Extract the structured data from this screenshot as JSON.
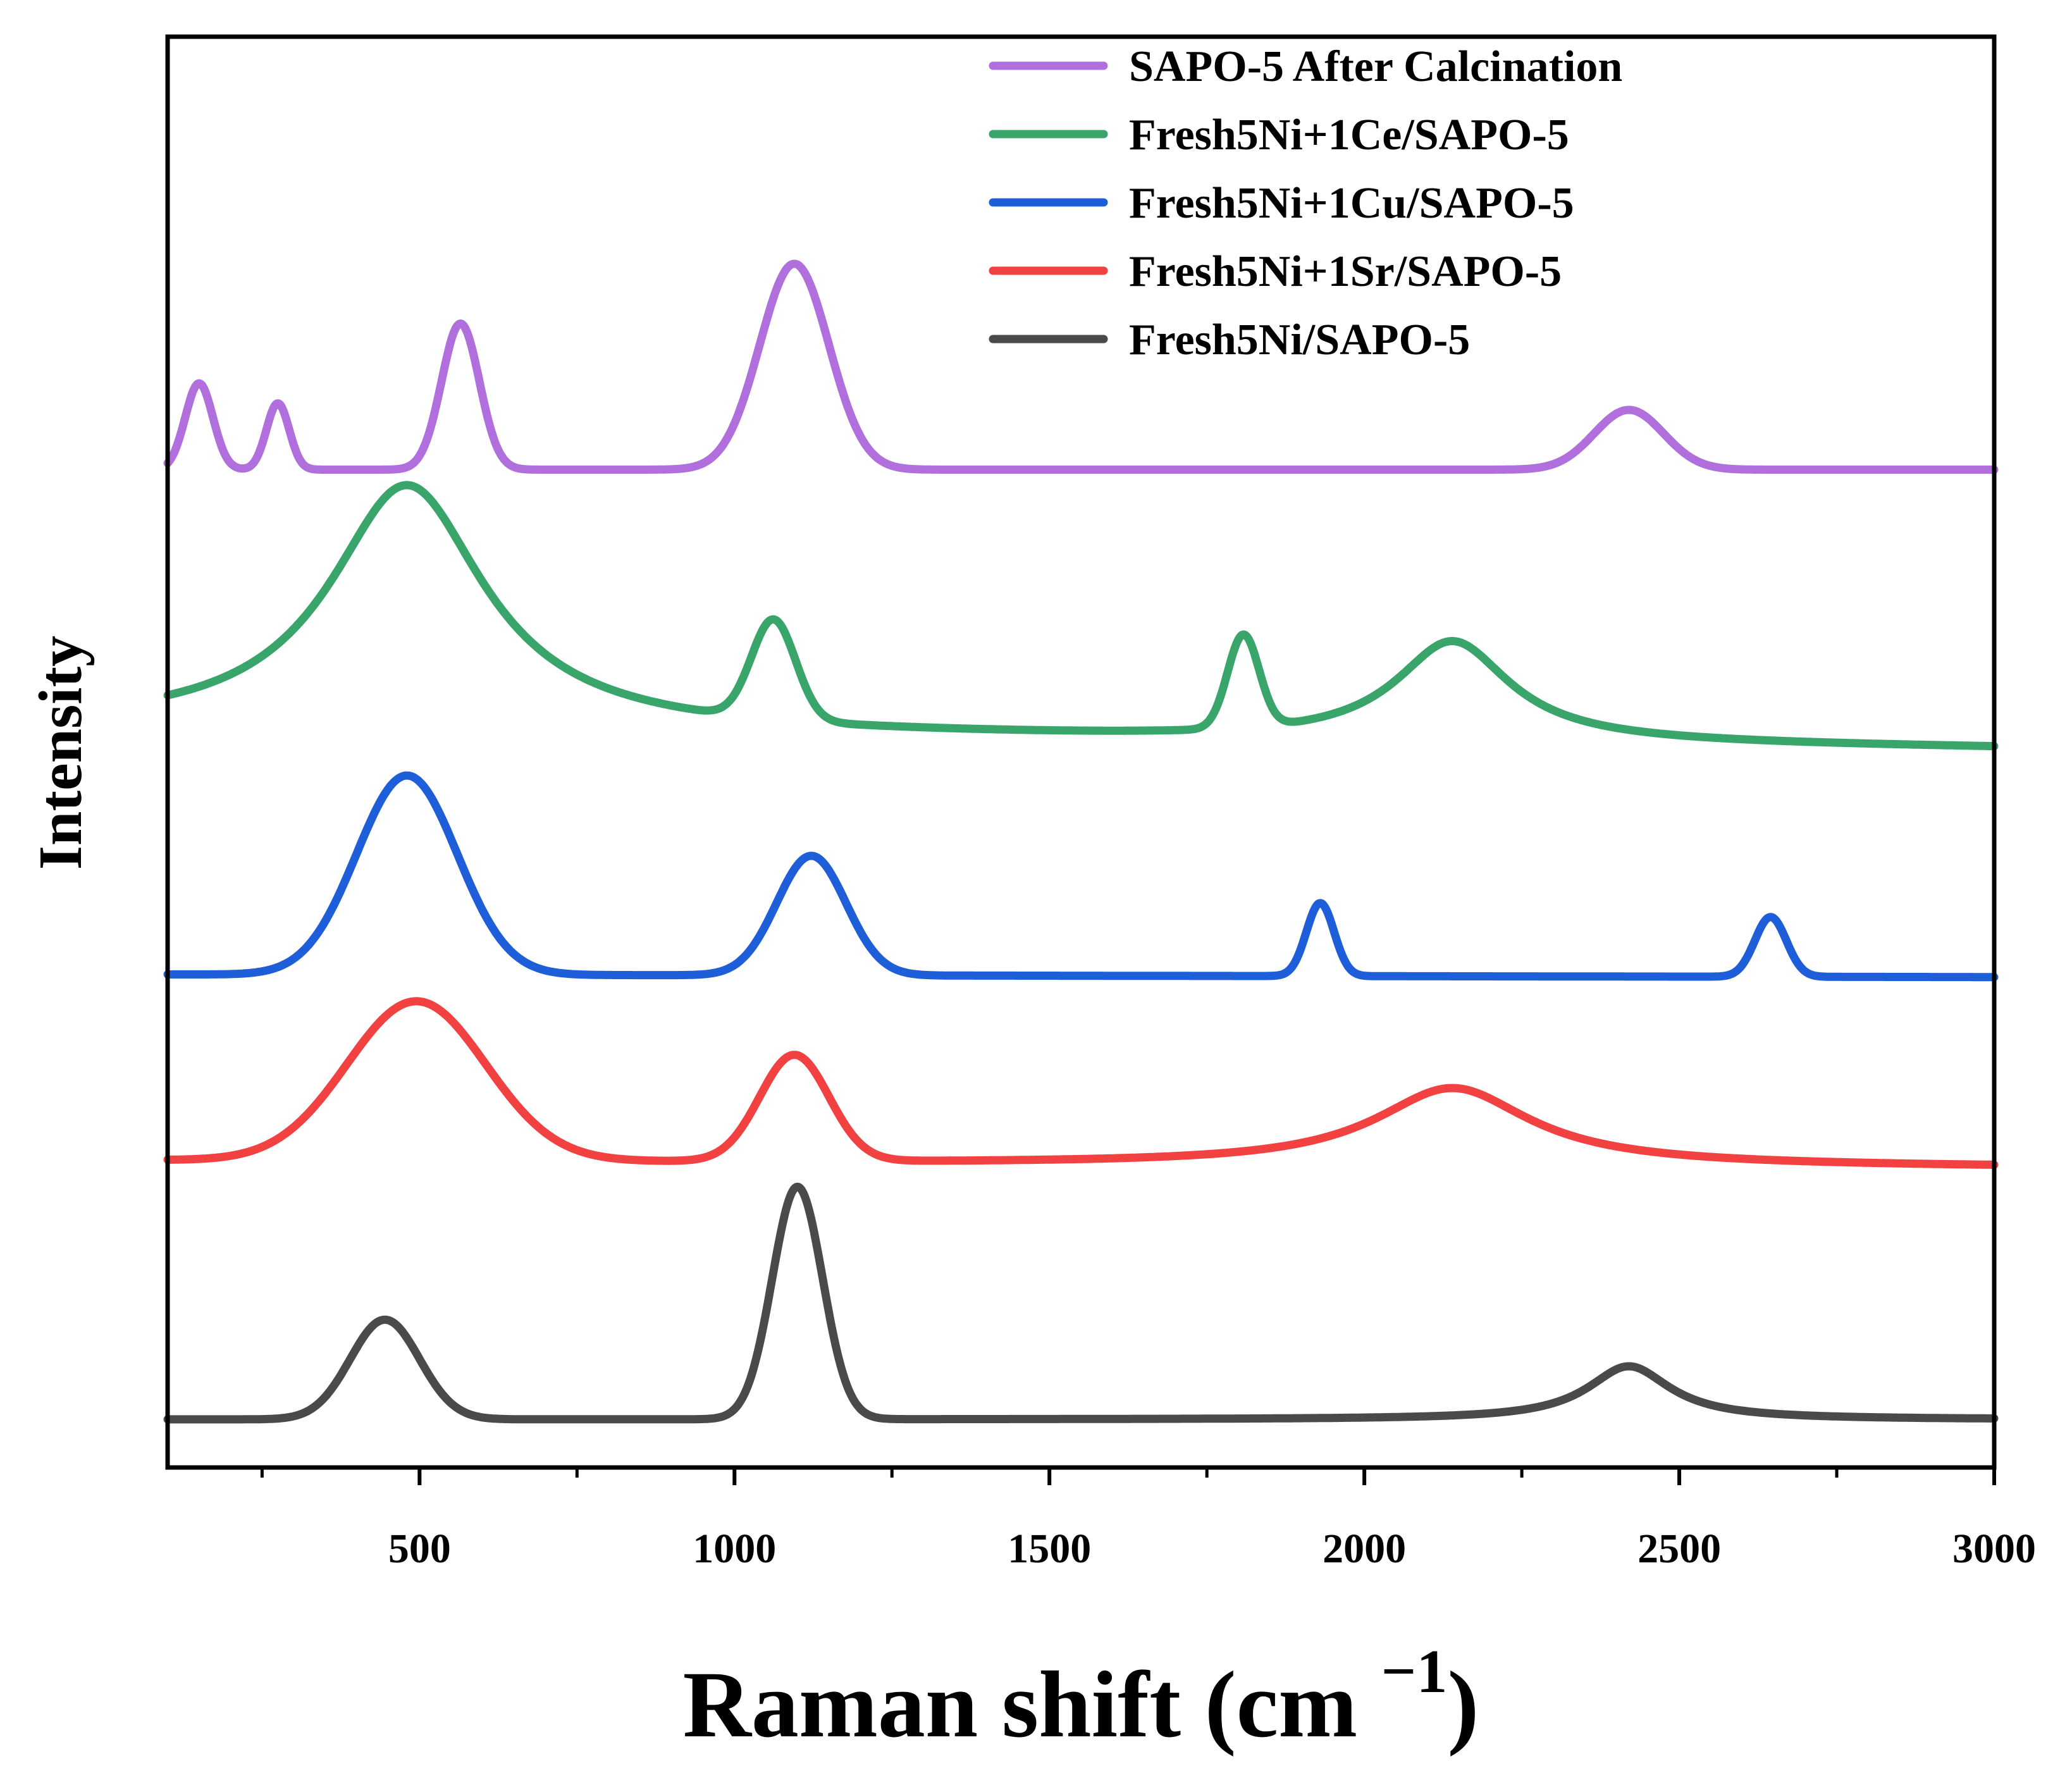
{
  "chart_data": {
    "type": "line",
    "title": "",
    "xlabel": "Raman shift (cm",
    "xlabel_superscript": "−1",
    "xlabel_close": ")",
    "ylabel": "Intensity",
    "xlim": [
      100,
      3000
    ],
    "ylim": [
      0,
      100
    ],
    "grid": false,
    "legend_position": "top-right",
    "x_ticks": [
      500,
      1000,
      1500,
      2000,
      2500,
      3000
    ],
    "x_tick_labels": [
      "500",
      "1000",
      "1500",
      "2000",
      "2500",
      "3000"
    ],
    "x_minor_ticks": [
      250,
      750,
      1250,
      1750,
      2250,
      2750
    ],
    "series": [
      {
        "name": "SAPO-5 After Calcination",
        "color": "#b06fdc",
        "baseline": 72.5,
        "baseline_end": 72.5,
        "peaks": [
          {
            "x": 150,
            "height": 6.5,
            "width": 22,
            "shape": "gauss"
          },
          {
            "x": 275,
            "height": 5.0,
            "width": 18,
            "shape": "gauss"
          },
          {
            "x": 565,
            "height": 11.0,
            "width": 30,
            "shape": "gauss"
          },
          {
            "x": 1095,
            "height": 15.5,
            "width": 55,
            "shape": "gauss"
          },
          {
            "x": 2420,
            "height": 4.5,
            "width": 55,
            "shape": "gauss"
          }
        ]
      },
      {
        "name": "Fresh5Ni+1Ce/SAPO-5",
        "color": "#3aa56b",
        "baseline": 53.0,
        "baseline_end": 51.5,
        "peaks": [
          {
            "x": 480,
            "height": 18.5,
            "width": 150,
            "shape": "lorentz"
          },
          {
            "x": 1062,
            "height": 7.5,
            "width": 35,
            "shape": "gauss"
          },
          {
            "x": 1808,
            "height": 7.0,
            "width": 25,
            "shape": "gauss"
          },
          {
            "x": 2140,
            "height": 7.5,
            "width": 110,
            "shape": "lorentz"
          }
        ]
      },
      {
        "name": "Fresh5Ni+1Cu/SAPO-5",
        "color": "#1e5ed8",
        "baseline": 34.5,
        "baseline_end": 34.3,
        "peaks": [
          {
            "x": 480,
            "height": 15.0,
            "width": 80,
            "shape": "gauss"
          },
          {
            "x": 1122,
            "height": 9.0,
            "width": 55,
            "shape": "gauss"
          },
          {
            "x": 1930,
            "height": 5.5,
            "width": 22,
            "shape": "gauss"
          },
          {
            "x": 2645,
            "height": 4.5,
            "width": 25,
            "shape": "gauss"
          }
        ]
      },
      {
        "name": "Fresh5Ni+1Sr/SAPO-5",
        "color": "#f14141",
        "baseline": 20.5,
        "baseline_end": 20.0,
        "peaks": [
          {
            "x": 495,
            "height": 12.0,
            "width": 110,
            "shape": "gauss"
          },
          {
            "x": 1095,
            "height": 8.0,
            "width": 55,
            "shape": "gauss"
          },
          {
            "x": 2140,
            "height": 5.8,
            "width": 150,
            "shape": "lorentz"
          }
        ]
      },
      {
        "name": "Fresh5Ni/SAPO-5",
        "color": "#4a4a4a",
        "baseline": 1.0,
        "baseline_end": 1.0,
        "peaks": [
          {
            "x": 445,
            "height": 7.5,
            "width": 55,
            "shape": "gauss"
          },
          {
            "x": 1100,
            "height": 17.5,
            "width": 40,
            "shape": "gauss"
          },
          {
            "x": 2420,
            "height": 4.0,
            "width": 80,
            "shape": "lorentz"
          }
        ]
      }
    ]
  }
}
